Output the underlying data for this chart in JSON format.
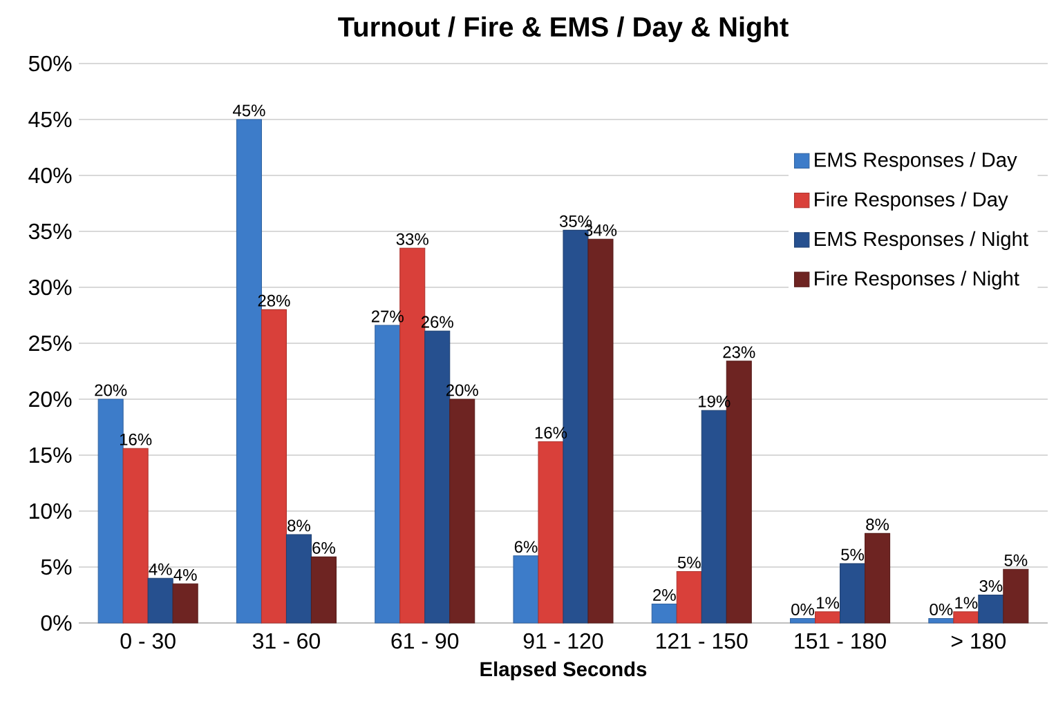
{
  "chart_data": {
    "type": "bar",
    "title": "Turnout / Fire & EMS / Day & Night",
    "xlabel": "Elapsed Seconds",
    "categories": [
      "0 - 30",
      "31 - 60",
      "61 - 90",
      "91 - 120",
      "121 - 150",
      "151 - 180",
      "> 180"
    ],
    "series": [
      {
        "name": "EMS Responses / Day",
        "color": "#3d7cc9",
        "values": [
          20,
          45,
          26.6,
          6,
          1.7,
          0.4,
          0.4
        ],
        "value_labels": [
          "20%",
          "45%",
          "27%",
          "6%",
          "2%",
          "0%",
          "0%"
        ]
      },
      {
        "name": "Fire Responses / Day",
        "color": "#d9403a",
        "values": [
          15.6,
          28,
          33.5,
          16.2,
          4.6,
          1.0,
          1.0
        ],
        "value_labels": [
          "16%",
          "28%",
          "33%",
          "16%",
          "5%",
          "1%",
          "1%"
        ]
      },
      {
        "name": "EMS Responses / Night",
        "color": "#26508f",
        "values": [
          4,
          7.9,
          26.1,
          35.1,
          19,
          5.3,
          2.5
        ],
        "value_labels": [
          "4%",
          "8%",
          "26%",
          "35%",
          "19%",
          "5%",
          "3%"
        ]
      },
      {
        "name": "Fire Responses / Night",
        "color": "#6e2422",
        "values": [
          3.5,
          5.9,
          20,
          34.3,
          23.4,
          8,
          4.8
        ],
        "value_labels": [
          "4%",
          "6%",
          "20%",
          "34%",
          "23%",
          "8%",
          "5%"
        ]
      }
    ],
    "ylim": [
      0,
      50
    ],
    "yticks": [
      {
        "value": 0,
        "label": "0%"
      },
      {
        "value": 5,
        "label": "5%"
      },
      {
        "value": 10,
        "label": "10%"
      },
      {
        "value": 15,
        "label": "15%"
      },
      {
        "value": 20,
        "label": "20%"
      },
      {
        "value": 25,
        "label": "25%"
      },
      {
        "value": 30,
        "label": "30%"
      },
      {
        "value": 35,
        "label": "35%"
      },
      {
        "value": 40,
        "label": "40%"
      },
      {
        "value": 45,
        "label": "45%"
      },
      {
        "value": 50,
        "label": "50%"
      }
    ],
    "grid": "y",
    "legend": "right"
  }
}
